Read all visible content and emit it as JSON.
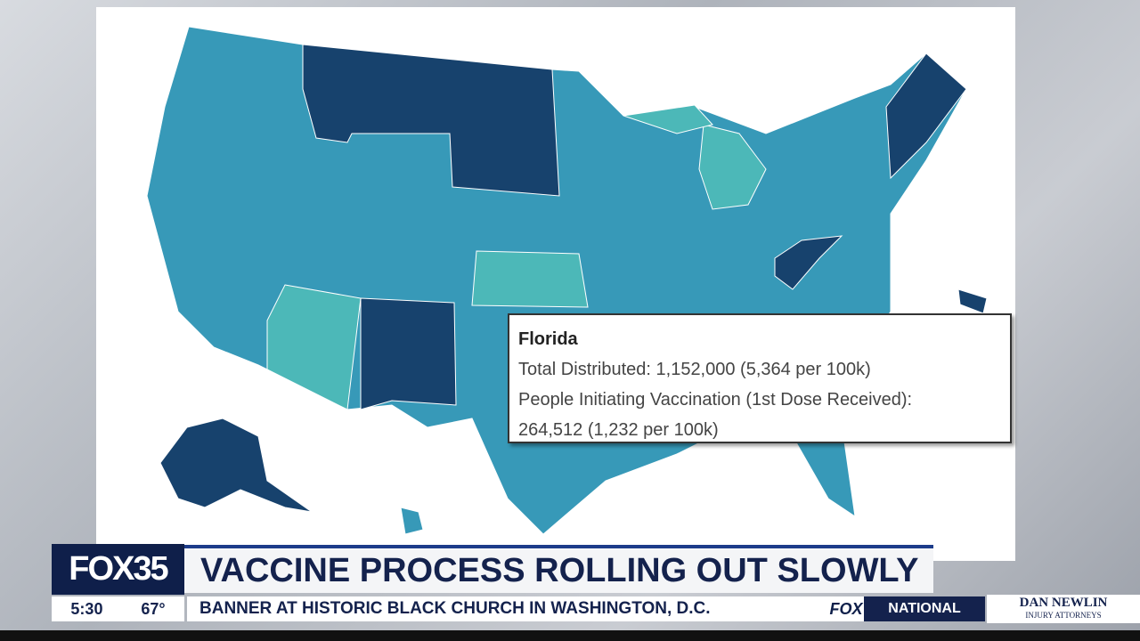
{
  "tooltip": {
    "title": "Florida",
    "lines": [
      "Total Distributed: 1,152,000 (5,364 per 100k)",
      "People Initiating Vaccination (1st Dose Received):",
      "264,512 (1,232 per 100k)"
    ]
  },
  "lower_third": {
    "logo": {
      "brand": "FOX",
      "channel": "35"
    },
    "headline": "VACCINE PROCESS ROLLING OUT SLOWLY",
    "time": "5:30",
    "temperature": "67°",
    "ticker": "BANNER AT HISTORIC BLACK CHURCH IN WASHINGTON, D.C.",
    "ticker_logo": "FOX",
    "section": "NATIONAL",
    "sponsor": {
      "name": "DAN NEWLIN",
      "tagline": "INJURY ATTORNEYS"
    }
  }
}
